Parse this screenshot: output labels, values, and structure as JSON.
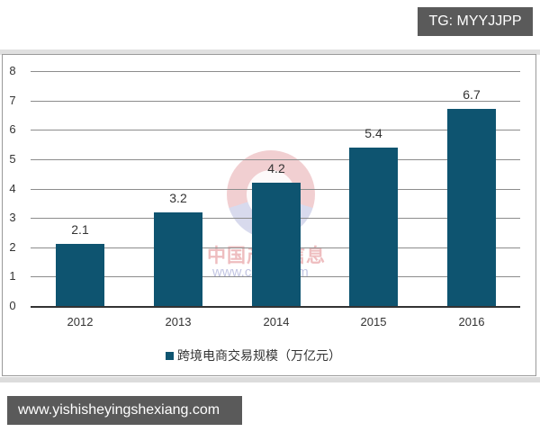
{
  "overlay": {
    "tg_label": "TG: MYYJJPP",
    "url_label": "www.yishisheyingshexiang.com"
  },
  "watermark": {
    "cn_text": "中国产业信息",
    "url_text": "www.chyxx.com"
  },
  "colors": {
    "bar": "#0e5470",
    "grid": "#8c8c8c",
    "badge_bg": "#5a5a5a"
  },
  "chart_data": {
    "type": "bar",
    "title": "",
    "xlabel": "",
    "ylabel": "",
    "categories": [
      "2012",
      "2013",
      "2014",
      "2015",
      "2016"
    ],
    "series": [
      {
        "name": "跨境电商交易规模（万亿元）",
        "values": [
          2.1,
          3.2,
          4.2,
          5.4,
          6.7
        ]
      }
    ],
    "value_labels": [
      "2.1",
      "3.2",
      "4.2",
      "5.4",
      "6.7"
    ],
    "yticks": [
      "0",
      "1",
      "2",
      "3",
      "4",
      "5",
      "6",
      "7",
      "8"
    ],
    "ylim": [
      0,
      8
    ],
    "grid": true,
    "legend_position": "bottom",
    "legend": [
      "跨境电商交易规模（万亿元）"
    ]
  }
}
